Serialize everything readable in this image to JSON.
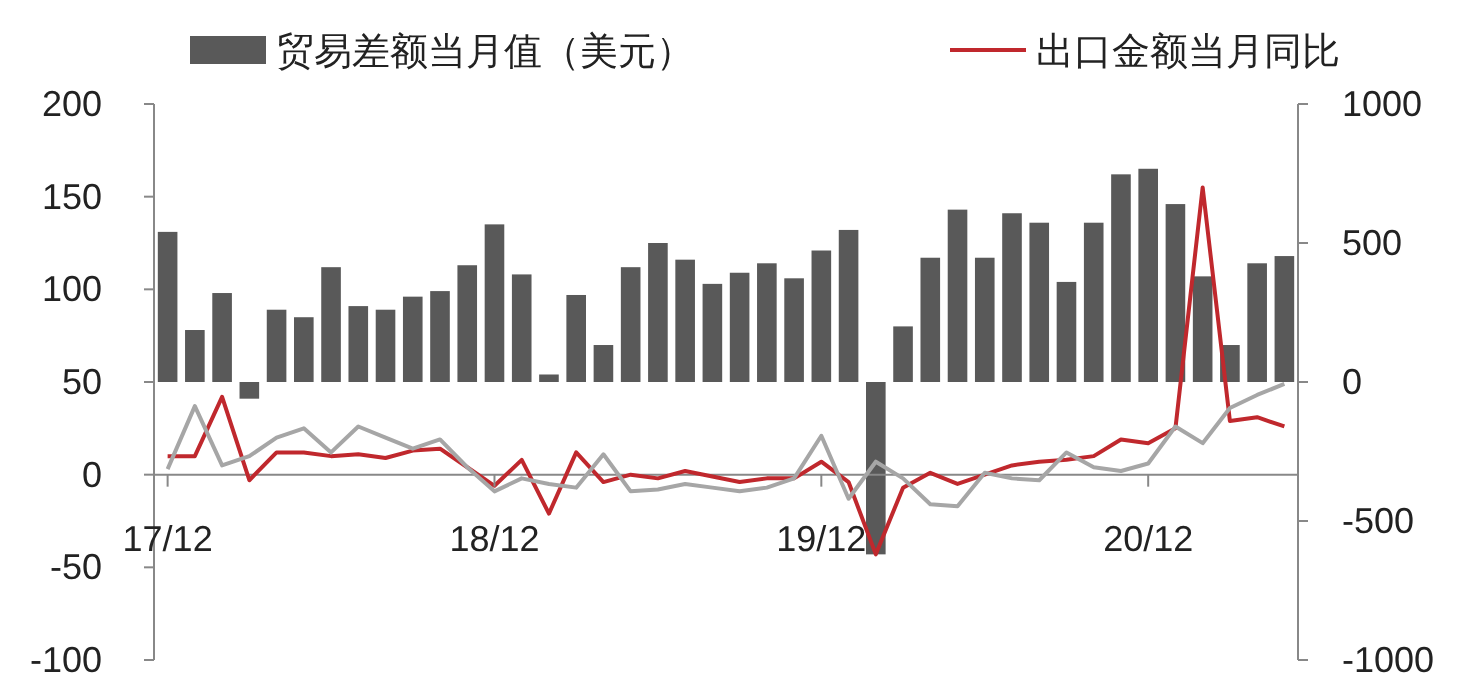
{
  "chart_data": {
    "type": "bar",
    "categories": [
      "17/12",
      null,
      null,
      null,
      null,
      null,
      null,
      null,
      null,
      null,
      null,
      null,
      "18/12",
      null,
      null,
      null,
      null,
      null,
      null,
      null,
      null,
      null,
      null,
      null,
      "19/12",
      null,
      null,
      null,
      null,
      null,
      null,
      null,
      null,
      null,
      null,
      null,
      "20/12",
      null,
      null,
      null,
      null,
      null
    ],
    "series": [
      {
        "name": "贸易差额当月值（美元）",
        "axis": "y2",
        "color": "#595959",
        "values": [
          540,
          187,
          320,
          -60,
          260,
          233,
          413,
          273,
          260,
          307,
          327,
          420,
          567,
          387,
          27,
          313,
          133,
          413,
          500,
          440,
          353,
          393,
          427,
          373,
          473,
          547,
          -620,
          200,
          447,
          620,
          447,
          607,
          573,
          360,
          573,
          747,
          767,
          640,
          380,
          133,
          427,
          453
        ]
      },
      {
        "name": "出口金额当月同比",
        "type": "line",
        "axis": "y",
        "color": "#c0282d",
        "values": [
          10,
          10,
          42,
          -3,
          12,
          12,
          10,
          11,
          9,
          13,
          14,
          4,
          -6,
          8,
          -21,
          12,
          -4,
          0,
          -2,
          2,
          -1,
          -4,
          -2,
          -2,
          7,
          -4,
          -43,
          -7,
          1,
          -5,
          0,
          5,
          7,
          8,
          10,
          19,
          17,
          25,
          155,
          29,
          31,
          26
        ]
      },
      {
        "type": "line",
        "axis": "y",
        "color": "#a6a6a6",
        "values": [
          3,
          37,
          5,
          10,
          20,
          25,
          12,
          26,
          20,
          14,
          19,
          4,
          -9,
          -2,
          -5,
          -7,
          11,
          -9,
          -8,
          -5,
          -7,
          -9,
          -7,
          -2,
          21,
          -13,
          7,
          -2,
          -16,
          -17,
          1,
          -2,
          -3,
          12,
          4,
          2,
          6,
          26,
          17,
          36,
          43,
          49
        ]
      }
    ],
    "ylim": [
      -100,
      200
    ],
    "yticks": [
      -100,
      -50,
      0,
      50,
      100,
      150,
      200
    ],
    "y2lim": [
      -1000,
      1000
    ],
    "y2ticks": [
      -1000,
      -500,
      0,
      500,
      1000
    ],
    "legend": "top",
    "grid": false
  }
}
